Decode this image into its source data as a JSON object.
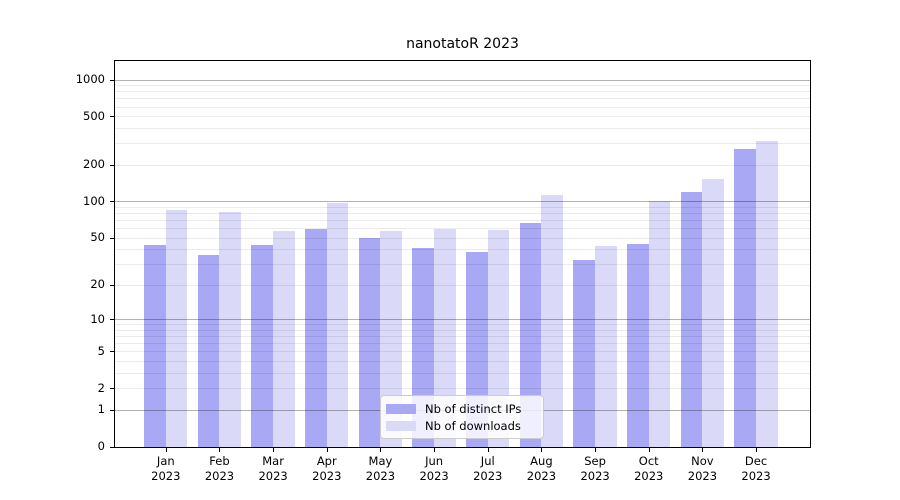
{
  "title": "nanotatoR 2023",
  "chart_data": {
    "type": "bar",
    "title": "nanotatoR 2023",
    "categories": [
      "Jan",
      "Feb",
      "Mar",
      "Apr",
      "May",
      "Jun",
      "Jul",
      "Aug",
      "Sep",
      "Oct",
      "Nov",
      "Dec"
    ],
    "year": "2023",
    "series": [
      {
        "name": "Nb of distinct IPs",
        "color": "#a8a8f5",
        "values": [
          44,
          36,
          44,
          60,
          50,
          41,
          38,
          67,
          33,
          45,
          120,
          270
        ]
      },
      {
        "name": "Nb of downloads",
        "color": "#dadaf8",
        "values": [
          86,
          83,
          57,
          97,
          57,
          60,
          59,
          115,
          43,
          101,
          153,
          315
        ]
      }
    ],
    "xlabel": "",
    "ylabel": "",
    "y_scale": "log1p",
    "y_ticks": [
      1000,
      500,
      200,
      100,
      50,
      20,
      10,
      5,
      2,
      1,
      0
    ],
    "ylim": [
      0,
      1430
    ],
    "grid": {
      "major_values": [
        1,
        10,
        100,
        1000
      ],
      "minor_lines": true
    },
    "legend_position": "lower center"
  },
  "colors": {
    "major_grid": "rgba(0,0,0,0.30)",
    "minor_grid": "rgba(0,0,0,0.08)",
    "spine": "#000000"
  }
}
